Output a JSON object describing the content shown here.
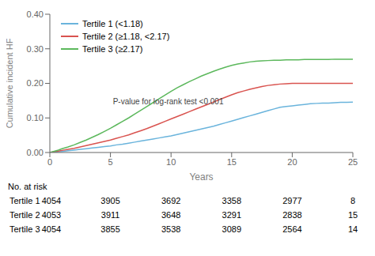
{
  "chart_data": {
    "type": "line",
    "xlabel": "Years",
    "ylabel": "Cumulative incident HF",
    "x": [
      0,
      0.3,
      0.7,
      1,
      1.5,
      2,
      2.5,
      3,
      3.5,
      4,
      4.5,
      5,
      5.5,
      6,
      6.5,
      7,
      7.5,
      8,
      8.5,
      9,
      9.5,
      10,
      10.5,
      11,
      11.5,
      12,
      12.5,
      13,
      13.5,
      14,
      14.5,
      15,
      15.5,
      16,
      16.5,
      17,
      17.5,
      18,
      18.5,
      19,
      19.5,
      20,
      20.5,
      21,
      21.5,
      22,
      22.5,
      23,
      23.5,
      24,
      24.5,
      25
    ],
    "series": [
      {
        "name": "Tertile 1 (<1.18)",
        "color": "#6ab4dc",
        "values": [
          0,
          0.001,
          0.002,
          0.003,
          0.005,
          0.007,
          0.009,
          0.011,
          0.013,
          0.015,
          0.017,
          0.019,
          0.022,
          0.024,
          0.027,
          0.03,
          0.033,
          0.036,
          0.039,
          0.042,
          0.045,
          0.048,
          0.052,
          0.056,
          0.06,
          0.064,
          0.068,
          0.072,
          0.076,
          0.081,
          0.086,
          0.091,
          0.096,
          0.101,
          0.106,
          0.111,
          0.116,
          0.121,
          0.126,
          0.131,
          0.133,
          0.135,
          0.137,
          0.139,
          0.141,
          0.142,
          0.143,
          0.143,
          0.144,
          0.145,
          0.145,
          0.146
        ]
      },
      {
        "name": "Tertile 2 (≥1.18, <2.17)",
        "color": "#d9534f",
        "values": [
          0,
          0.002,
          0.004,
          0.006,
          0.009,
          0.012,
          0.016,
          0.02,
          0.024,
          0.028,
          0.032,
          0.036,
          0.041,
          0.046,
          0.051,
          0.057,
          0.063,
          0.069,
          0.076,
          0.083,
          0.09,
          0.097,
          0.104,
          0.111,
          0.118,
          0.125,
          0.132,
          0.139,
          0.146,
          0.153,
          0.16,
          0.167,
          0.173,
          0.178,
          0.183,
          0.187,
          0.191,
          0.194,
          0.196,
          0.198,
          0.199,
          0.2,
          0.2,
          0.2,
          0.2,
          0.2,
          0.2,
          0.2,
          0.2,
          0.2,
          0.2,
          0.2
        ]
      },
      {
        "name": "Tertile 3 (≥2.17)",
        "color": "#5cb85c",
        "values": [
          0,
          0.003,
          0.007,
          0.011,
          0.016,
          0.022,
          0.029,
          0.036,
          0.044,
          0.052,
          0.061,
          0.07,
          0.08,
          0.09,
          0.1,
          0.111,
          0.122,
          0.133,
          0.144,
          0.155,
          0.166,
          0.177,
          0.187,
          0.196,
          0.205,
          0.213,
          0.221,
          0.228,
          0.235,
          0.241,
          0.247,
          0.252,
          0.256,
          0.259,
          0.262,
          0.264,
          0.265,
          0.266,
          0.267,
          0.267,
          0.268,
          0.268,
          0.268,
          0.269,
          0.269,
          0.269,
          0.269,
          0.269,
          0.27,
          0.27,
          0.27,
          0.27
        ]
      }
    ],
    "xlim": [
      0,
      25
    ],
    "ylim": [
      0,
      0.4
    ],
    "xticks": [
      0,
      5,
      10,
      15,
      20,
      25
    ],
    "yticks": [
      {
        "value": 0,
        "label": "0.00"
      },
      {
        "value": 0.1,
        "label": "0.10"
      },
      {
        "value": 0.2,
        "label": "0.20"
      },
      {
        "value": 0.3,
        "label": "0.30"
      },
      {
        "value": 0.4,
        "label": "0.40"
      }
    ],
    "grid": false,
    "legend": "upper left",
    "annotations": [
      {
        "text": "P-value for log-rank test <0.001",
        "x": 5.2,
        "y": 0.14
      }
    ],
    "at_risk": {
      "label": "No. at risk",
      "times": [
        5,
        10,
        15,
        20,
        25
      ],
      "rows": [
        {
          "label": "Tertile 1 4054",
          "values": [
            3905,
            3692,
            3358,
            2977,
            8
          ]
        },
        {
          "label": "Tertile 2 4053",
          "values": [
            3911,
            3648,
            3291,
            2838,
            15
          ]
        },
        {
          "label": "Tertile 3 4054",
          "values": [
            3855,
            3538,
            3089,
            2564,
            14
          ]
        }
      ]
    }
  }
}
